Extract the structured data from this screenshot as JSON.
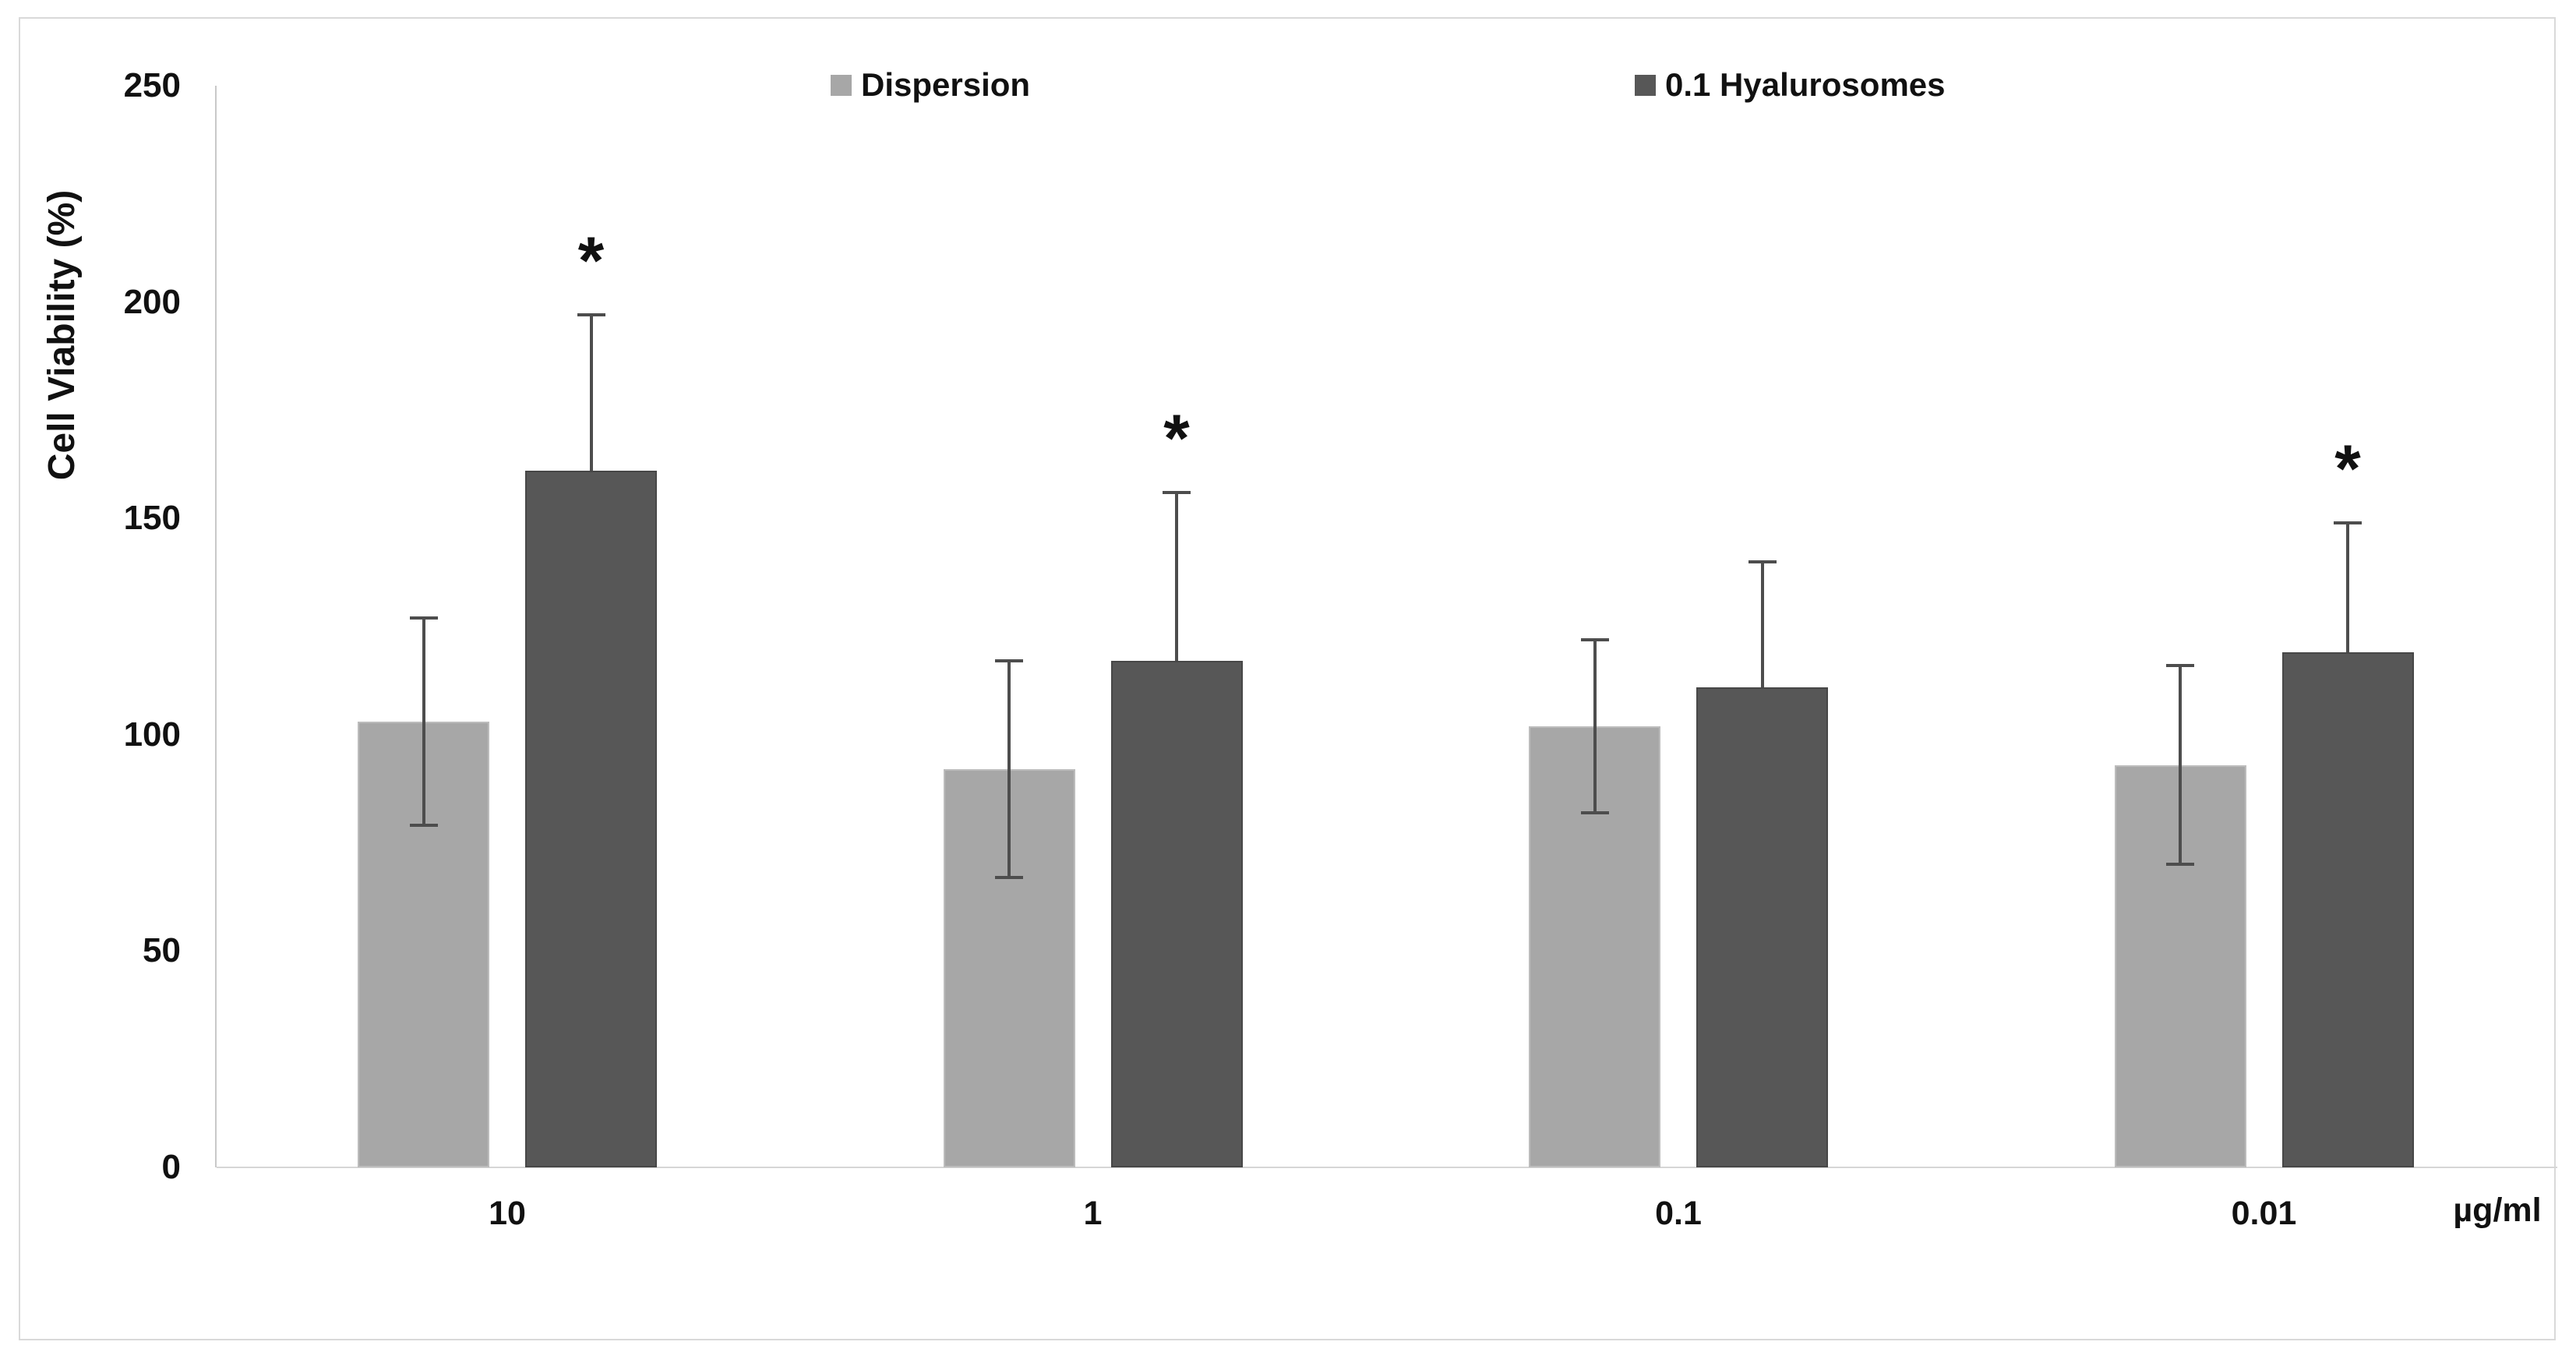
{
  "figure": {
    "frame_color": "#d9d9d9",
    "significance_marker": "*"
  },
  "chart_data": {
    "type": "bar",
    "title": "",
    "ylabel": "Cell Viability (%)",
    "x_unit": "µg/ml",
    "categories": [
      "10",
      "1",
      "0.1",
      "0.01"
    ],
    "y_ticks": [
      0,
      50,
      100,
      150,
      200,
      250
    ],
    "ylim": [
      0,
      250
    ],
    "grid": false,
    "legend_position": "top",
    "series": [
      {
        "name": "Dispersion",
        "color": "#a7a7a7",
        "values": [
          103,
          92,
          102,
          93
        ],
        "error": [
          24,
          25,
          20,
          23
        ],
        "error_style": "both",
        "significant": [
          false,
          false,
          false,
          false
        ]
      },
      {
        "name": "0.1 Hyalurosomes",
        "color": "#575757",
        "values": [
          161,
          117,
          111,
          119
        ],
        "error": [
          36,
          39,
          29,
          30
        ],
        "error_style": "up",
        "significant": [
          true,
          true,
          false,
          true
        ]
      }
    ]
  }
}
